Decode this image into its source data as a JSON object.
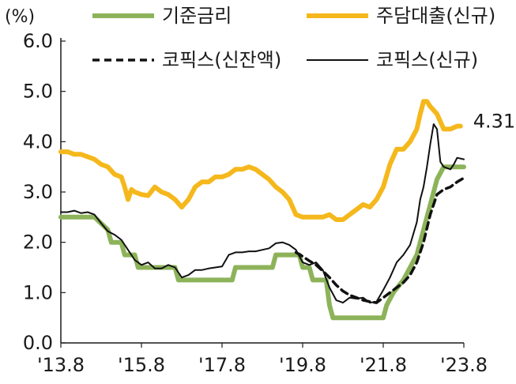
{
  "chart_data": {
    "type": "line",
    "unit_label": "(%)",
    "ylim": [
      0,
      6
    ],
    "y_ticks": [
      "0.0",
      "1.0",
      "2.0",
      "3.0",
      "4.0",
      "5.0",
      "6.0"
    ],
    "x_tick_labels": [
      "'13.8",
      "'15.8",
      "'17.8",
      "'19.8",
      "'21.8",
      "'23.8"
    ],
    "x_tick_values": [
      0,
      24,
      48,
      72,
      96,
      120
    ],
    "x_range": [
      0,
      120
    ],
    "legend_placement": "top",
    "end_annotation": "4.31",
    "series": [
      {
        "name": "기준금리",
        "color": "#8db35a",
        "style": "solid-thick",
        "points": [
          [
            0,
            2.5
          ],
          [
            10,
            2.5
          ],
          [
            14,
            2.25
          ],
          [
            15,
            2.0
          ],
          [
            18,
            2.0
          ],
          [
            19,
            1.75
          ],
          [
            22,
            1.75
          ],
          [
            23,
            1.5
          ],
          [
            34,
            1.5
          ],
          [
            35,
            1.25
          ],
          [
            51,
            1.25
          ],
          [
            52,
            1.5
          ],
          [
            63,
            1.5
          ],
          [
            64,
            1.75
          ],
          [
            71,
            1.75
          ],
          [
            72,
            1.5
          ],
          [
            74,
            1.5
          ],
          [
            75,
            1.25
          ],
          [
            79,
            1.25
          ],
          [
            80,
            0.75
          ],
          [
            81,
            0.5
          ],
          [
            96,
            0.5
          ],
          [
            97,
            0.75
          ],
          [
            99,
            1.0
          ],
          [
            102,
            1.25
          ],
          [
            104,
            1.5
          ],
          [
            106,
            1.75
          ],
          [
            108,
            2.25
          ],
          [
            109,
            2.5
          ],
          [
            111,
            3.0
          ],
          [
            112,
            3.25
          ],
          [
            114,
            3.5
          ],
          [
            120,
            3.5
          ]
        ]
      },
      {
        "name": "주담대출(신규)",
        "color": "#f5b81c",
        "style": "solid-thick",
        "points": [
          [
            0,
            3.8
          ],
          [
            2,
            3.8
          ],
          [
            4,
            3.75
          ],
          [
            6,
            3.75
          ],
          [
            8,
            3.7
          ],
          [
            10,
            3.65
          ],
          [
            12,
            3.55
          ],
          [
            14,
            3.5
          ],
          [
            16,
            3.35
          ],
          [
            18,
            3.3
          ],
          [
            19,
            3.1
          ],
          [
            20,
            2.85
          ],
          [
            21,
            3.05
          ],
          [
            22,
            3.0
          ],
          [
            24,
            2.95
          ],
          [
            26,
            2.93
          ],
          [
            28,
            3.1
          ],
          [
            30,
            3.0
          ],
          [
            32,
            2.95
          ],
          [
            34,
            2.85
          ],
          [
            36,
            2.7
          ],
          [
            38,
            2.85
          ],
          [
            40,
            3.1
          ],
          [
            42,
            3.2
          ],
          [
            44,
            3.2
          ],
          [
            46,
            3.3
          ],
          [
            48,
            3.3
          ],
          [
            50,
            3.35
          ],
          [
            52,
            3.45
          ],
          [
            54,
            3.45
          ],
          [
            56,
            3.5
          ],
          [
            58,
            3.45
          ],
          [
            60,
            3.35
          ],
          [
            62,
            3.25
          ],
          [
            64,
            3.1
          ],
          [
            66,
            3.0
          ],
          [
            68,
            2.85
          ],
          [
            70,
            2.55
          ],
          [
            72,
            2.5
          ],
          [
            74,
            2.5
          ],
          [
            76,
            2.5
          ],
          [
            78,
            2.5
          ],
          [
            80,
            2.55
          ],
          [
            82,
            2.45
          ],
          [
            84,
            2.45
          ],
          [
            86,
            2.55
          ],
          [
            88,
            2.65
          ],
          [
            90,
            2.75
          ],
          [
            92,
            2.7
          ],
          [
            94,
            2.85
          ],
          [
            96,
            3.1
          ],
          [
            98,
            3.55
          ],
          [
            100,
            3.85
          ],
          [
            102,
            3.85
          ],
          [
            104,
            4.0
          ],
          [
            106,
            4.25
          ],
          [
            107,
            4.55
          ],
          [
            108,
            4.8
          ],
          [
            109,
            4.8
          ],
          [
            110,
            4.7
          ],
          [
            112,
            4.55
          ],
          [
            113,
            4.4
          ],
          [
            114,
            4.25
          ],
          [
            116,
            4.25
          ],
          [
            118,
            4.31
          ],
          [
            119,
            4.31
          ]
        ]
      },
      {
        "name": "코픽스(신잔액)",
        "color": "#111111",
        "style": "dashed",
        "points": [
          [
            70,
            1.8
          ],
          [
            72,
            1.72
          ],
          [
            74,
            1.63
          ],
          [
            76,
            1.55
          ],
          [
            78,
            1.43
          ],
          [
            80,
            1.3
          ],
          [
            82,
            1.15
          ],
          [
            84,
            1.03
          ],
          [
            86,
            0.95
          ],
          [
            88,
            0.9
          ],
          [
            90,
            0.85
          ],
          [
            92,
            0.82
          ],
          [
            94,
            0.8
          ],
          [
            96,
            0.9
          ],
          [
            98,
            1.0
          ],
          [
            100,
            1.1
          ],
          [
            102,
            1.2
          ],
          [
            104,
            1.35
          ],
          [
            106,
            1.6
          ],
          [
            108,
            2.0
          ],
          [
            110,
            2.55
          ],
          [
            112,
            2.95
          ],
          [
            114,
            3.05
          ],
          [
            116,
            3.1
          ],
          [
            118,
            3.2
          ],
          [
            120,
            3.28
          ]
        ]
      },
      {
        "name": "코픽스(신규)",
        "color": "#111111",
        "style": "solid-thin",
        "points": [
          [
            0,
            2.6
          ],
          [
            2,
            2.6
          ],
          [
            4,
            2.63
          ],
          [
            6,
            2.58
          ],
          [
            8,
            2.6
          ],
          [
            10,
            2.55
          ],
          [
            12,
            2.38
          ],
          [
            14,
            2.22
          ],
          [
            16,
            2.15
          ],
          [
            18,
            2.05
          ],
          [
            20,
            1.85
          ],
          [
            22,
            1.65
          ],
          [
            24,
            1.55
          ],
          [
            26,
            1.6
          ],
          [
            28,
            1.48
          ],
          [
            30,
            1.48
          ],
          [
            32,
            1.55
          ],
          [
            34,
            1.5
          ],
          [
            36,
            1.3
          ],
          [
            38,
            1.35
          ],
          [
            40,
            1.45
          ],
          [
            42,
            1.45
          ],
          [
            44,
            1.48
          ],
          [
            46,
            1.5
          ],
          [
            48,
            1.52
          ],
          [
            50,
            1.75
          ],
          [
            52,
            1.8
          ],
          [
            54,
            1.8
          ],
          [
            56,
            1.82
          ],
          [
            58,
            1.82
          ],
          [
            60,
            1.85
          ],
          [
            62,
            1.88
          ],
          [
            64,
            1.98
          ],
          [
            66,
            2.0
          ],
          [
            68,
            1.95
          ],
          [
            70,
            1.85
          ],
          [
            72,
            1.6
          ],
          [
            74,
            1.55
          ],
          [
            76,
            1.6
          ],
          [
            78,
            1.45
          ],
          [
            80,
            1.1
          ],
          [
            82,
            0.85
          ],
          [
            84,
            0.8
          ],
          [
            86,
            0.9
          ],
          [
            88,
            0.88
          ],
          [
            90,
            0.9
          ],
          [
            92,
            0.8
          ],
          [
            94,
            0.82
          ],
          [
            96,
            1.05
          ],
          [
            98,
            1.3
          ],
          [
            100,
            1.6
          ],
          [
            102,
            1.75
          ],
          [
            104,
            1.95
          ],
          [
            106,
            2.4
          ],
          [
            107,
            2.85
          ],
          [
            108,
            3.1
          ],
          [
            109,
            3.5
          ],
          [
            110,
            3.95
          ],
          [
            111,
            4.35
          ],
          [
            112,
            4.25
          ],
          [
            113,
            3.6
          ],
          [
            114,
            3.5
          ],
          [
            116,
            3.45
          ],
          [
            117,
            3.55
          ],
          [
            118,
            3.68
          ],
          [
            120,
            3.65
          ]
        ]
      }
    ],
    "legend": [
      {
        "label": "기준금리",
        "color": "#8db35a",
        "style": "solid-thick"
      },
      {
        "label": "주담대출(신규)",
        "color": "#f5b81c",
        "style": "solid-thick"
      },
      {
        "label": "코픽스(신잔액)",
        "color": "#111111",
        "style": "dashed"
      },
      {
        "label": "코픽스(신규)",
        "color": "#111111",
        "style": "solid-thin"
      }
    ]
  }
}
